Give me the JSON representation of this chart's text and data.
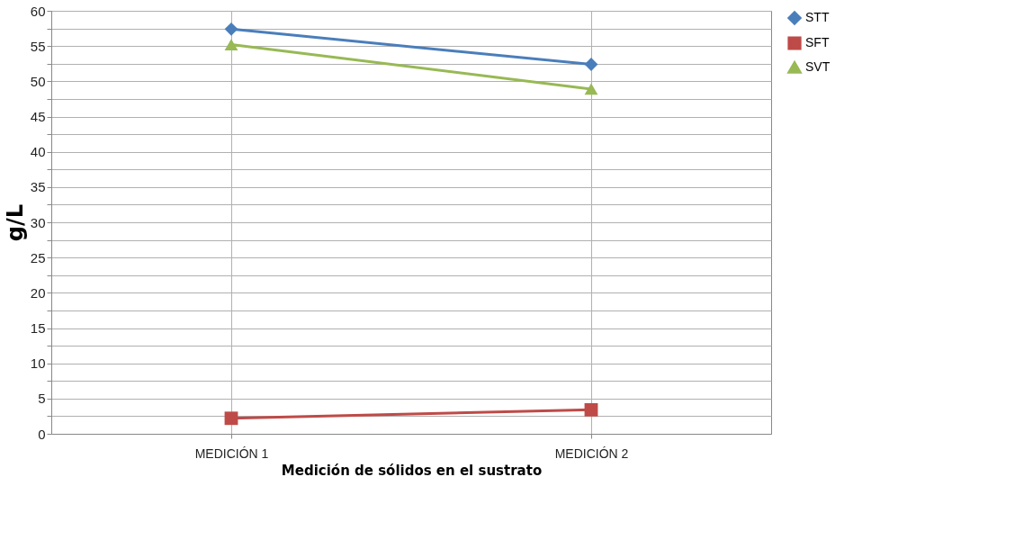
{
  "chart_data": {
    "type": "line",
    "xlabel": "Medición de sólidos en el sustrato",
    "ylabel": "g/L",
    "categories": [
      "MEDICIÓN 1",
      "MEDICIÓN 2"
    ],
    "series": [
      {
        "name": "STT",
        "color": "#4a7ebb",
        "values": [
          57.4,
          52.4
        ],
        "marker": "diamond"
      },
      {
        "name": "SFT",
        "color": "#be4b48",
        "values": [
          2.2,
          3.4
        ],
        "marker": "square"
      },
      {
        "name": "SVT",
        "color": "#98b954",
        "values": [
          55.2,
          48.9
        ],
        "marker": "triangle"
      }
    ],
    "ylim": [
      0,
      60
    ],
    "yticks": [
      0,
      {
        "value": 2.5,
        "label": null
      },
      5,
      {
        "value": 7.5,
        "label": null
      },
      10,
      {
        "value": 12.5,
        "label": null
      },
      15,
      {
        "value": 17.5,
        "label": null
      },
      20,
      {
        "value": 22.5,
        "label": null
      },
      25,
      {
        "value": 27.5,
        "label": null
      },
      30,
      {
        "value": 32.5,
        "label": null
      },
      35,
      {
        "value": 37.5,
        "label": null
      },
      40,
      {
        "value": 42.5,
        "label": null
      },
      45,
      {
        "value": 47.5,
        "label": null
      },
      50,
      {
        "value": 52.5,
        "label": null
      },
      55,
      {
        "value": 57.5,
        "label": null
      },
      60
    ],
    "grid": true,
    "legend": "right",
    "line_style": "solid"
  }
}
